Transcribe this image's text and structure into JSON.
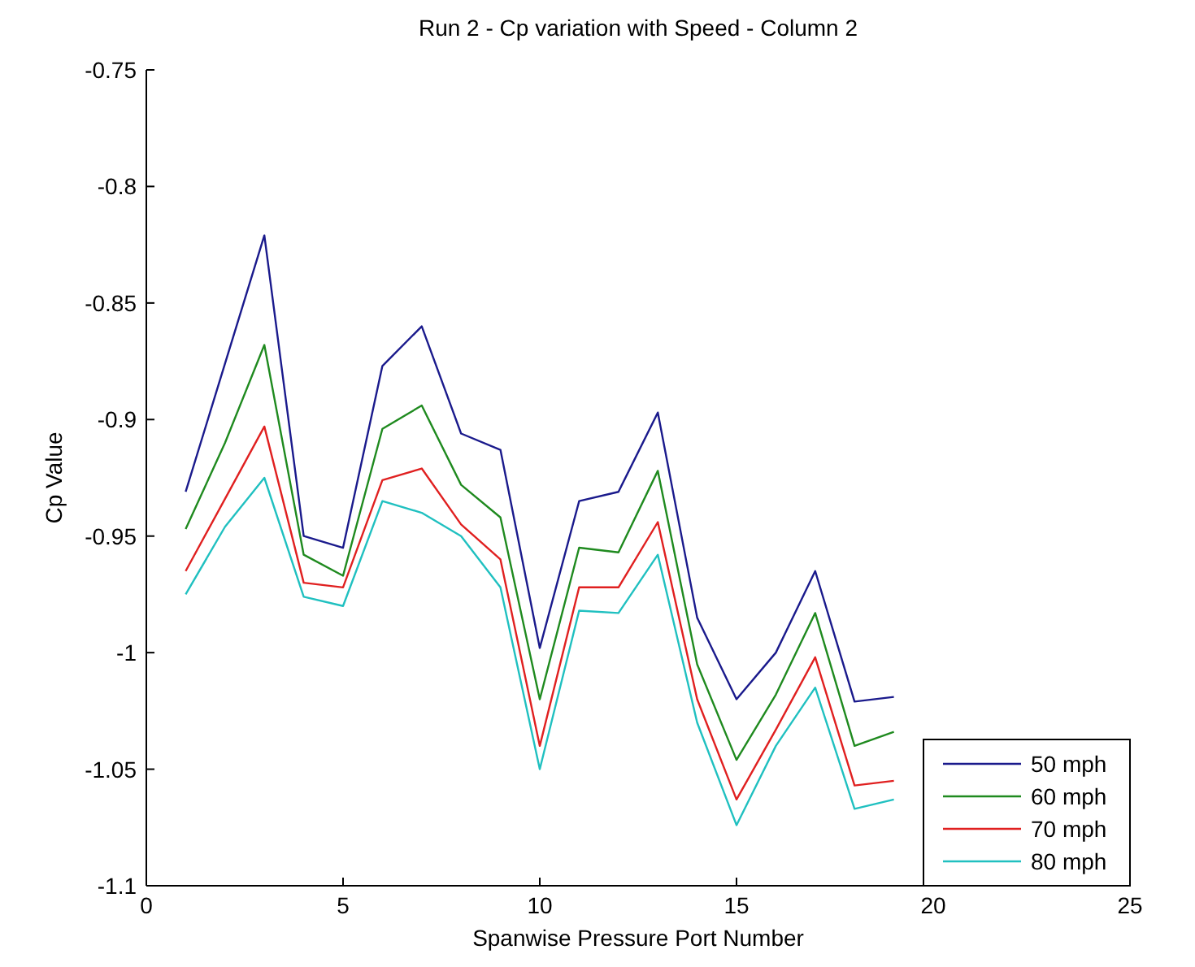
{
  "chart_data": {
    "type": "line",
    "title": "Run 2 - Cp variation with Speed - Column 2",
    "xlabel": "Spanwise Pressure Port Number",
    "ylabel": "Cp Value",
    "x": [
      1,
      2,
      3,
      4,
      5,
      6,
      7,
      8,
      9,
      10,
      11,
      12,
      13,
      14,
      15,
      16,
      17,
      18,
      19
    ],
    "series": [
      {
        "name": "50 mph",
        "color": "#1a1a8c",
        "values": [
          -0.931,
          -0.876,
          -0.821,
          -0.95,
          -0.955,
          -0.877,
          -0.86,
          -0.906,
          -0.913,
          -0.998,
          -0.935,
          -0.931,
          -0.897,
          -0.985,
          -1.02,
          -1.0,
          -0.965,
          -1.021,
          -1.019
        ]
      },
      {
        "name": "60 mph",
        "color": "#1f8a1f",
        "values": [
          -0.947,
          -0.91,
          -0.868,
          -0.958,
          -0.967,
          -0.904,
          -0.894,
          -0.928,
          -0.942,
          -1.02,
          -0.955,
          -0.957,
          -0.922,
          -1.005,
          -1.046,
          -1.018,
          -0.983,
          -1.04,
          -1.034
        ]
      },
      {
        "name": "70 mph",
        "color": "#e02020",
        "values": [
          -0.965,
          -0.934,
          -0.903,
          -0.97,
          -0.972,
          -0.926,
          -0.921,
          -0.945,
          -0.96,
          -1.04,
          -0.972,
          -0.972,
          -0.944,
          -1.02,
          -1.063,
          -1.033,
          -1.002,
          -1.057,
          -1.055
        ]
      },
      {
        "name": "80 mph",
        "color": "#20c0c0",
        "values": [
          -0.975,
          -0.946,
          -0.925,
          -0.976,
          -0.98,
          -0.935,
          -0.94,
          -0.95,
          -0.972,
          -1.05,
          -0.982,
          -0.983,
          -0.958,
          -1.03,
          -1.074,
          -1.04,
          -1.015,
          -1.067,
          -1.063
        ]
      }
    ],
    "xlim": [
      0,
      25
    ],
    "xticks": [
      0,
      5,
      10,
      15,
      20,
      25
    ],
    "ylim": [
      -1.1,
      -0.75
    ],
    "yticks": [
      -1.1,
      -1.05,
      -1,
      -0.95,
      -0.9,
      -0.85,
      -0.8,
      -0.75
    ],
    "legend": "bottom right",
    "line_style": "solid"
  }
}
